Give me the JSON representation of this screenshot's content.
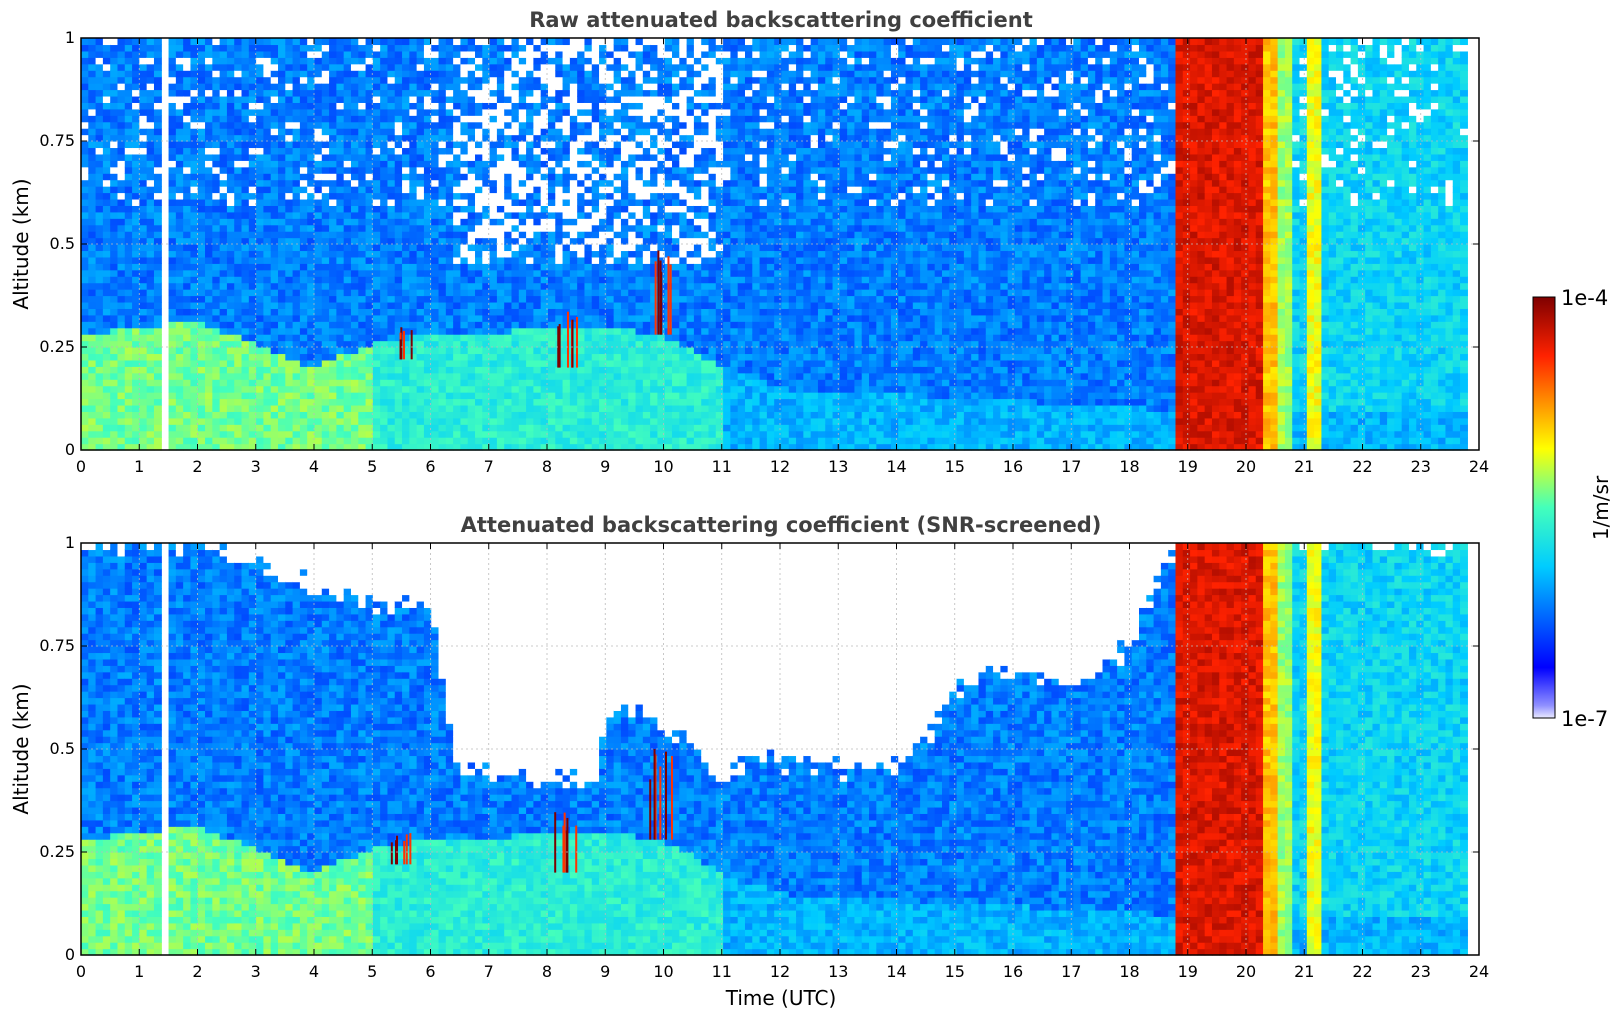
{
  "chart_data": [
    {
      "type": "heatmap",
      "title": "Raw attenuated backscattering coefficient",
      "xlabel": "",
      "ylabel": "Altitude (km)",
      "xlim": [
        0,
        24
      ],
      "ylim": [
        0,
        1
      ],
      "xticks": [
        0,
        1,
        2,
        3,
        4,
        5,
        6,
        7,
        8,
        9,
        10,
        11,
        12,
        13,
        14,
        15,
        16,
        17,
        18,
        19,
        20,
        21,
        22,
        23,
        24
      ],
      "yticks": [
        0,
        0.25,
        0.5,
        0.75,
        1
      ],
      "ytick_labels": [
        "0",
        "0.25",
        "0.5",
        "0.75",
        "1"
      ],
      "grid": true,
      "data_end_hour": 23.8,
      "missing_intervals": [
        [
          1.42,
          1.5
        ]
      ],
      "boundary_layer_top_km": {
        "hours": [
          0,
          1,
          2,
          3,
          4,
          5,
          6,
          7,
          8,
          9,
          10,
          11,
          12,
          18.5
        ],
        "values": [
          0.28,
          0.3,
          0.31,
          0.26,
          0.2,
          0.26,
          0.28,
          0.28,
          0.3,
          0.3,
          0.28,
          0.2,
          0.15,
          0.1
        ]
      },
      "high_backscatter_events": [
        {
          "start_hour": 5.3,
          "end_hour": 5.7,
          "top_km": 0.3,
          "bottom_km": 0.22
        },
        {
          "start_hour": 8.1,
          "end_hour": 8.6,
          "top_km": 0.35,
          "bottom_km": 0.2
        },
        {
          "start_hour": 9.7,
          "end_hour": 10.2,
          "top_km": 0.5,
          "bottom_km": 0.28
        }
      ],
      "cloud_columns": [
        {
          "start_hour": 18.8,
          "end_hour": 20.3,
          "log10_value": -4.3
        },
        {
          "start_hour": 20.3,
          "end_hour": 20.6,
          "log10_value": -4.9
        },
        {
          "start_hour": 20.6,
          "end_hour": 20.75,
          "log10_value": -5.3
        },
        {
          "start_hour": 21.1,
          "end_hour": 21.3,
          "log10_value": -5.1
        }
      ]
    },
    {
      "type": "heatmap",
      "title": "Attenuated backscattering coefficient (SNR-screened)",
      "xlabel": "Time (UTC)",
      "ylabel": "Altitude (km)",
      "xlim": [
        0,
        24
      ],
      "ylim": [
        0,
        1
      ],
      "xticks": [
        0,
        1,
        2,
        3,
        4,
        5,
        6,
        7,
        8,
        9,
        10,
        11,
        12,
        13,
        14,
        15,
        16,
        17,
        18,
        19,
        20,
        21,
        22,
        23,
        24
      ],
      "yticks": [
        0,
        0.25,
        0.5,
        0.75,
        1
      ],
      "ytick_labels": [
        "0",
        "0.25",
        "0.5",
        "0.75",
        "1"
      ],
      "grid": true,
      "data_end_hour": 23.8,
      "missing_intervals": [
        [
          1.42,
          1.5
        ]
      ],
      "screened_top_km": {
        "hours": [
          0,
          2,
          3,
          4,
          5,
          6,
          6.3,
          6.5,
          8.8,
          9.0,
          9.5,
          10.5,
          11.0,
          11.5,
          12,
          13,
          14,
          14.6,
          15,
          16,
          17,
          18,
          18.8
        ],
        "values": [
          1.0,
          1.0,
          0.95,
          0.9,
          0.85,
          0.85,
          0.6,
          0.45,
          0.42,
          0.6,
          0.6,
          0.5,
          0.4,
          0.5,
          0.47,
          0.45,
          0.45,
          0.55,
          0.65,
          0.7,
          0.65,
          0.75,
          1.0
        ]
      },
      "cloud_columns": [
        {
          "start_hour": 18.8,
          "end_hour": 20.3,
          "log10_value": -4.3
        },
        {
          "start_hour": 20.3,
          "end_hour": 20.6,
          "log10_value": -4.9
        },
        {
          "start_hour": 20.6,
          "end_hour": 20.75,
          "log10_value": -5.3
        },
        {
          "start_hour": 21.1,
          "end_hour": 21.3,
          "log10_value": -5.1
        }
      ]
    }
  ],
  "colorbar": {
    "label": "1/m/sr",
    "max_label": "1e-4",
    "min_label": "1e-7",
    "log10_range": [
      -7,
      -4
    ],
    "colormap": "jet"
  }
}
